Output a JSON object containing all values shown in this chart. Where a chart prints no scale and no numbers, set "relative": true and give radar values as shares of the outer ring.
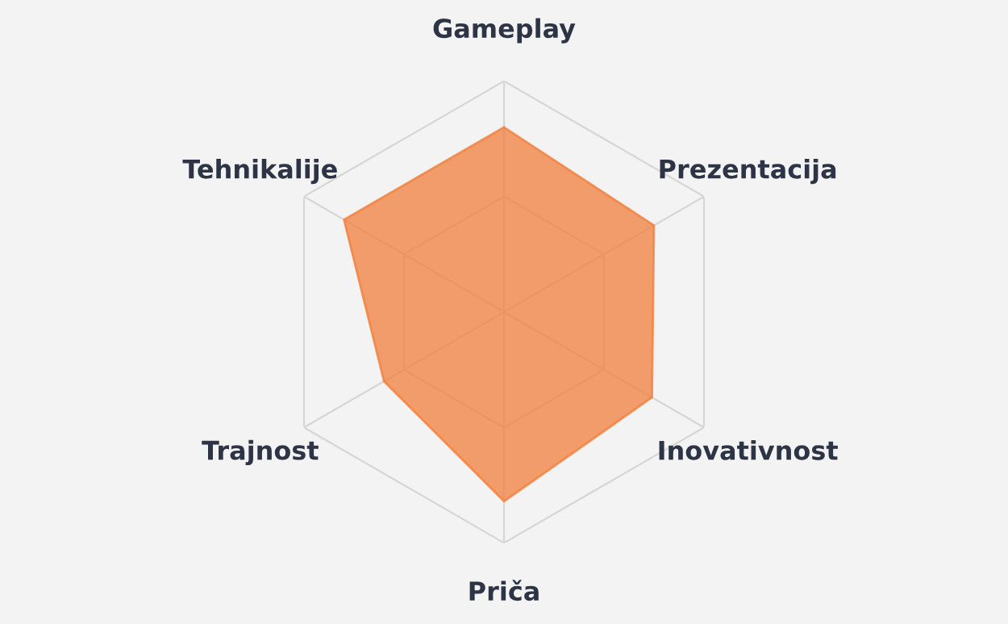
{
  "chart_data": {
    "type": "radar",
    "categories": [
      "Gameplay",
      "Prezentacija",
      "Inovativnost",
      "Priča",
      "Trajnost",
      "Tehnikalije"
    ],
    "relative": true,
    "series": [
      {
        "color": "#f07f3c",
        "values": [
          0.8,
          0.75,
          0.74,
          0.82,
          0.6,
          0.8
        ]
      }
    ],
    "grid": true,
    "legend": false
  }
}
